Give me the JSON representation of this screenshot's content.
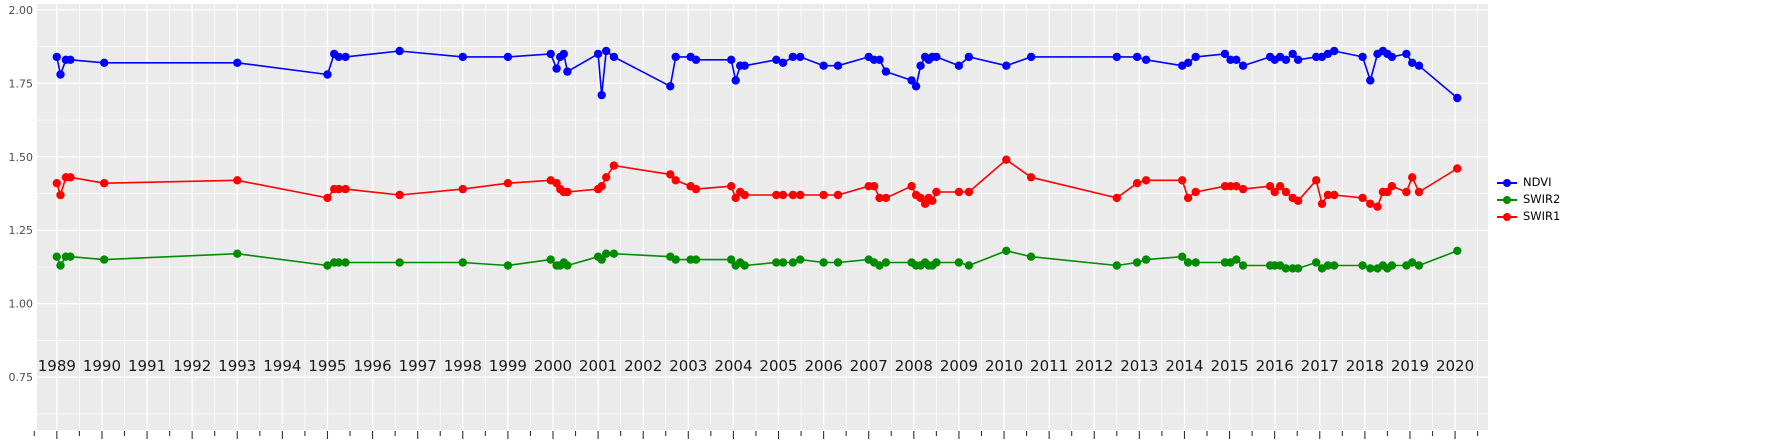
{
  "figure": {
    "background": "#FFFFFF",
    "panel_background": "#EBEBEB",
    "grid_color": "#FFFFFF",
    "tick_color": "#333333",
    "axis_text_color": "#4D4D4D",
    "x_text_color": "#1A1A1A"
  },
  "legend": {
    "items": [
      {
        "label": "NDVI",
        "color": "#0000FF"
      },
      {
        "label": "SWIR2",
        "color": "#008B00"
      },
      {
        "label": "SWIR1",
        "color": "#FF0000"
      }
    ]
  },
  "chart_data": {
    "type": "line",
    "title": "",
    "xlabel": "",
    "ylabel": "",
    "grid": true,
    "legend_position": "right",
    "xlim": [
      1988.56,
      2020.73
    ],
    "ylim": [
      0.57,
      2.02
    ],
    "x_ticks": [
      1989,
      1990,
      1991,
      1992,
      1993,
      1994,
      1995,
      1996,
      1997,
      1998,
      1999,
      2000,
      2001,
      2002,
      2003,
      2004,
      2005,
      2006,
      2007,
      2008,
      2009,
      2010,
      2011,
      2012,
      2013,
      2014,
      2015,
      2016,
      2017,
      2018,
      2019,
      2020
    ],
    "y_ticks": [
      2.0,
      1.75,
      1.5,
      1.25,
      1.0,
      0.75
    ],
    "y_tick_labels": [
      "2.00",
      "1.75",
      "1.50",
      "1.25",
      "1.00",
      "0.75"
    ],
    "x": [
      1989.0,
      1989.08,
      1989.2,
      1989.3,
      1990.05,
      1993.0,
      1995.0,
      1995.15,
      1995.25,
      1995.4,
      1996.6,
      1998.0,
      1999.0,
      1999.95,
      2000.08,
      2000.16,
      2000.24,
      2000.32,
      2001.0,
      2001.08,
      2001.18,
      2001.35,
      2002.6,
      2002.72,
      2003.05,
      2003.17,
      2003.95,
      2004.05,
      2004.15,
      2004.25,
      2004.95,
      2005.1,
      2005.32,
      2005.48,
      2006.0,
      2006.32,
      2007.0,
      2007.12,
      2007.24,
      2007.38,
      2007.95,
      2008.05,
      2008.15,
      2008.25,
      2008.33,
      2008.41,
      2008.5,
      2009.0,
      2009.22,
      2010.05,
      2010.6,
      2012.5,
      2012.95,
      2013.15,
      2013.95,
      2014.08,
      2014.25,
      2014.9,
      2015.02,
      2015.15,
      2015.3,
      2015.9,
      2016.0,
      2016.12,
      2016.25,
      2016.4,
      2016.52,
      2016.92,
      2017.05,
      2017.18,
      2017.32,
      2017.95,
      2018.12,
      2018.28,
      2018.4,
      2018.5,
      2018.6,
      2018.92,
      2019.05,
      2019.2,
      2020.05
    ],
    "series": [
      {
        "name": "NDVI",
        "color": "#0000FF",
        "values": [
          1.84,
          1.78,
          1.83,
          1.83,
          1.82,
          1.82,
          1.78,
          1.85,
          1.84,
          1.84,
          1.86,
          1.84,
          1.84,
          1.85,
          1.8,
          1.84,
          1.85,
          1.79,
          1.85,
          1.71,
          1.86,
          1.84,
          1.74,
          1.84,
          1.84,
          1.83,
          1.83,
          1.76,
          1.81,
          1.81,
          1.83,
          1.82,
          1.84,
          1.84,
          1.81,
          1.81,
          1.84,
          1.83,
          1.83,
          1.79,
          1.76,
          1.74,
          1.81,
          1.84,
          1.83,
          1.84,
          1.84,
          1.81,
          1.84,
          1.81,
          1.84,
          1.84,
          1.84,
          1.83,
          1.81,
          1.82,
          1.84,
          1.85,
          1.83,
          1.83,
          1.81,
          1.84,
          1.83,
          1.84,
          1.83,
          1.85,
          1.83,
          1.84,
          1.84,
          1.85,
          1.86,
          1.84,
          1.76,
          1.85,
          1.86,
          1.85,
          1.84,
          1.85,
          1.82,
          1.81,
          1.7
        ]
      },
      {
        "name": "SWIR2",
        "color": "#008B00",
        "values": [
          1.16,
          1.13,
          1.16,
          1.16,
          1.15,
          1.17,
          1.13,
          1.14,
          1.14,
          1.14,
          1.14,
          1.14,
          1.13,
          1.15,
          1.13,
          1.13,
          1.14,
          1.13,
          1.16,
          1.15,
          1.17,
          1.17,
          1.16,
          1.15,
          1.15,
          1.15,
          1.15,
          1.13,
          1.14,
          1.13,
          1.14,
          1.14,
          1.14,
          1.15,
          1.14,
          1.14,
          1.15,
          1.14,
          1.13,
          1.14,
          1.14,
          1.13,
          1.13,
          1.14,
          1.13,
          1.13,
          1.14,
          1.14,
          1.13,
          1.18,
          1.16,
          1.13,
          1.14,
          1.15,
          1.16,
          1.14,
          1.14,
          1.14,
          1.14,
          1.15,
          1.13,
          1.13,
          1.13,
          1.13,
          1.12,
          1.12,
          1.12,
          1.14,
          1.12,
          1.13,
          1.13,
          1.13,
          1.12,
          1.12,
          1.13,
          1.12,
          1.13,
          1.13,
          1.14,
          1.13,
          1.18
        ]
      },
      {
        "name": "SWIR1",
        "color": "#FF0000",
        "values": [
          1.41,
          1.37,
          1.43,
          1.43,
          1.41,
          1.42,
          1.36,
          1.39,
          1.39,
          1.39,
          1.37,
          1.39,
          1.41,
          1.42,
          1.41,
          1.39,
          1.38,
          1.38,
          1.39,
          1.4,
          1.43,
          1.47,
          1.44,
          1.42,
          1.4,
          1.39,
          1.4,
          1.36,
          1.38,
          1.37,
          1.37,
          1.37,
          1.37,
          1.37,
          1.37,
          1.37,
          1.4,
          1.4,
          1.36,
          1.36,
          1.4,
          1.37,
          1.36,
          1.34,
          1.36,
          1.35,
          1.38,
          1.38,
          1.38,
          1.49,
          1.43,
          1.36,
          1.41,
          1.42,
          1.42,
          1.36,
          1.38,
          1.4,
          1.4,
          1.4,
          1.39,
          1.4,
          1.38,
          1.4,
          1.38,
          1.36,
          1.35,
          1.42,
          1.34,
          1.37,
          1.37,
          1.36,
          1.34,
          1.33,
          1.38,
          1.38,
          1.4,
          1.38,
          1.43,
          1.38,
          1.46
        ]
      }
    ]
  }
}
